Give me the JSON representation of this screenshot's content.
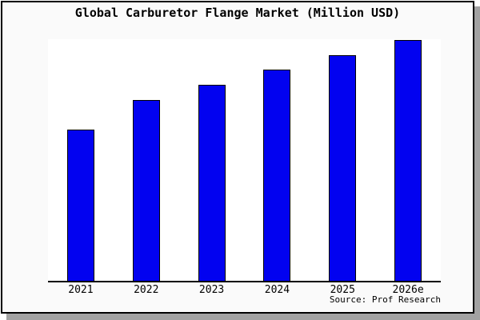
{
  "title": "Global Carburetor Flange Market (Million USD)",
  "source": "Source: Prof Research",
  "colors": {
    "figure_bg": "#fafafa",
    "plot_bg": "#ffffff",
    "bar_fill": "#0202f0",
    "bar_edge": "#000000",
    "frame_border": "#000000",
    "drop_shadow": "#a2a2a2"
  },
  "chart_data": {
    "type": "bar",
    "title": "Global Carburetor Flange Market (Million USD)",
    "categories": [
      "2021",
      "2022",
      "2023",
      "2024",
      "2025",
      "2026e"
    ],
    "values": [
      62.8,
      75.1,
      81.4,
      87.7,
      93.7,
      100
    ],
    "value_note": "no y-axis tick labels shown; values estimated relative to 2026e = 100",
    "xlabel": "",
    "ylabel": "",
    "ylim": [
      0,
      100.3
    ],
    "grid": false,
    "legend": false,
    "source": "Source: Prof Research"
  }
}
